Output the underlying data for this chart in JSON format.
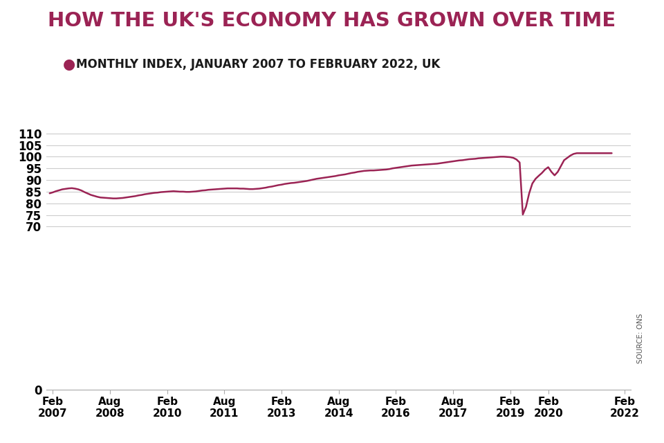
{
  "title": "HOW THE UK'S ECONOMY HAS GROWN OVER TIME",
  "subtitle": "MONTHLY INDEX, JANUARY 2007 TO FEBRUARY 2022, UK",
  "title_color": "#9B2354",
  "subtitle_color": "#1a1a1a",
  "line_color": "#9B2354",
  "background_color": "#ffffff",
  "ylim": [
    0,
    114
  ],
  "yticks": [
    0,
    70,
    75,
    80,
    85,
    90,
    95,
    100,
    105,
    110
  ],
  "source_text": "SOURCE: ONS",
  "tick_labels": [
    "Feb\n2007",
    "Aug\n2008",
    "Feb\n2010",
    "Aug\n2011",
    "Feb\n2013",
    "Aug\n2014",
    "Feb\n2016",
    "Aug\n2017",
    "Feb\n2019",
    "Feb\n2020",
    "Feb\n2022"
  ],
  "tick_indices": [
    1,
    19,
    37,
    55,
    73,
    91,
    109,
    127,
    145,
    157,
    181
  ],
  "data": [
    84.3,
    84.7,
    85.2,
    85.6,
    86.0,
    86.2,
    86.4,
    86.5,
    86.3,
    86.0,
    85.5,
    84.8,
    84.2,
    83.6,
    83.2,
    82.8,
    82.5,
    82.4,
    82.3,
    82.2,
    82.1,
    82.1,
    82.2,
    82.3,
    82.5,
    82.7,
    82.9,
    83.1,
    83.4,
    83.6,
    83.9,
    84.1,
    84.3,
    84.5,
    84.6,
    84.8,
    84.9,
    85.0,
    85.1,
    85.2,
    85.1,
    85.0,
    85.0,
    84.9,
    84.9,
    85.0,
    85.1,
    85.3,
    85.5,
    85.6,
    85.8,
    85.9,
    86.0,
    86.1,
    86.2,
    86.3,
    86.4,
    86.4,
    86.4,
    86.4,
    86.3,
    86.3,
    86.2,
    86.1,
    86.1,
    86.2,
    86.3,
    86.5,
    86.7,
    87.0,
    87.2,
    87.5,
    87.8,
    88.0,
    88.3,
    88.5,
    88.7,
    88.8,
    89.0,
    89.2,
    89.4,
    89.6,
    89.9,
    90.2,
    90.5,
    90.7,
    90.9,
    91.1,
    91.3,
    91.5,
    91.7,
    92.0,
    92.2,
    92.4,
    92.7,
    93.0,
    93.2,
    93.5,
    93.7,
    93.9,
    94.0,
    94.1,
    94.1,
    94.2,
    94.3,
    94.4,
    94.5,
    94.7,
    95.0,
    95.2,
    95.4,
    95.6,
    95.8,
    96.0,
    96.2,
    96.3,
    96.4,
    96.5,
    96.6,
    96.7,
    96.8,
    96.9,
    97.0,
    97.2,
    97.4,
    97.6,
    97.8,
    98.0,
    98.2,
    98.4,
    98.5,
    98.7,
    98.9,
    99.0,
    99.1,
    99.3,
    99.4,
    99.5,
    99.6,
    99.7,
    99.8,
    99.9,
    100.0,
    100.0,
    99.9,
    99.8,
    99.5,
    98.8,
    97.5,
    75.2,
    78.5,
    84.3,
    88.5,
    90.5,
    91.8,
    93.0,
    94.5,
    95.5,
    93.5,
    92.0,
    93.5,
    96.0,
    98.5,
    99.5,
    100.5,
    101.2,
    101.5,
    101.5,
    101.5,
    101.5,
    101.5,
    101.5,
    101.5,
    101.5,
    101.5,
    101.5,
    101.5,
    101.5
  ]
}
